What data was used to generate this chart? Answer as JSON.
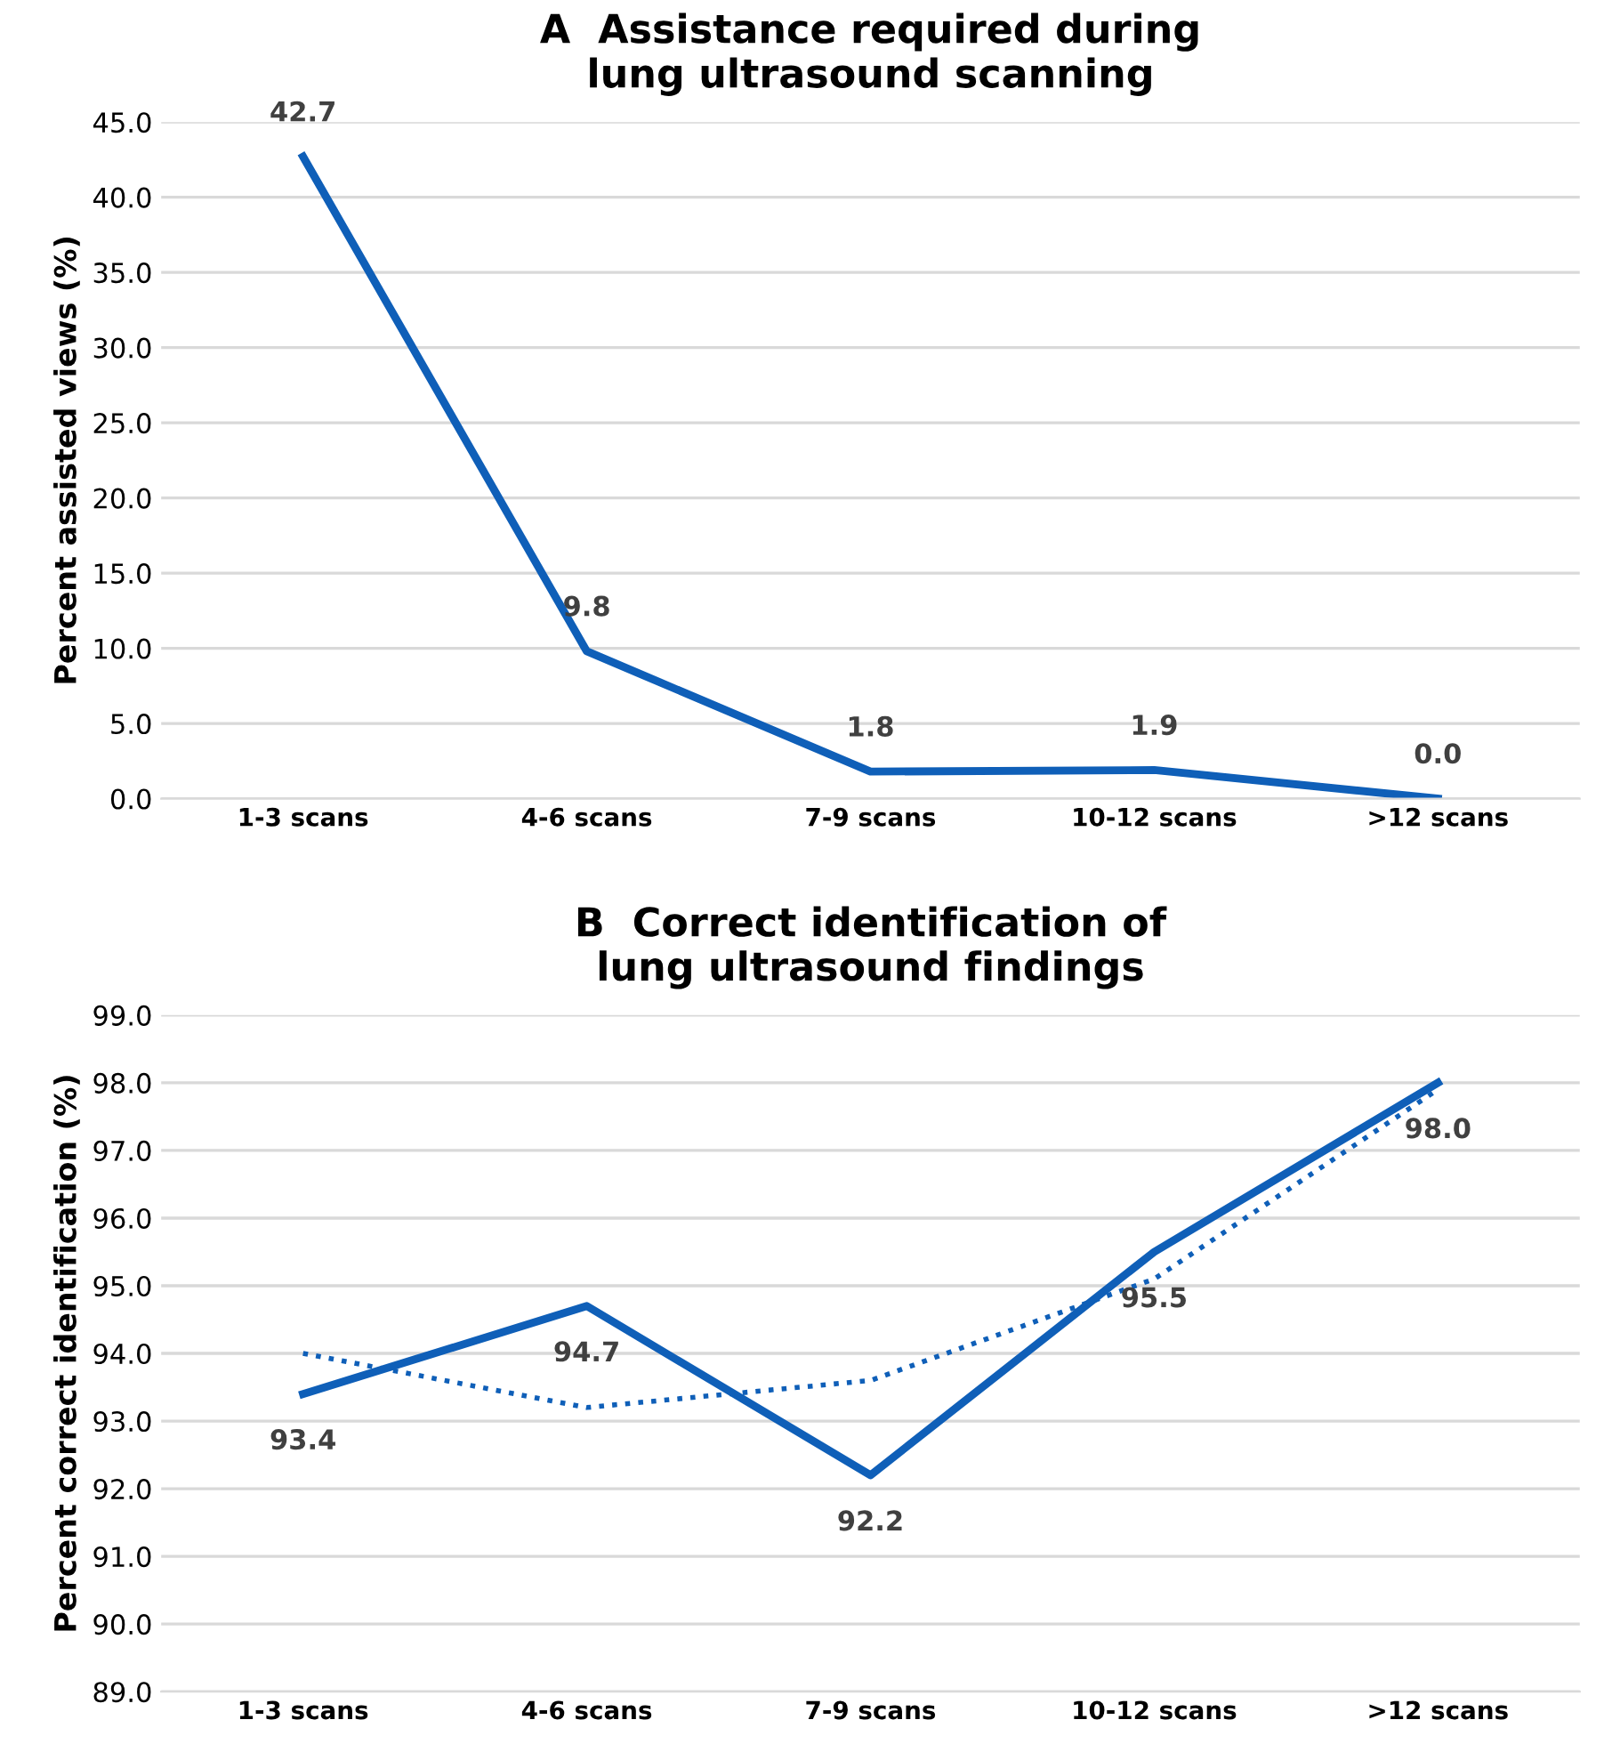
{
  "chart_data": [
    {
      "type": "line",
      "title": "A  Assistance required during\nlung ultrasound scanning",
      "ylabel": "Percent assisted views (%)",
      "categories": [
        "1-3 scans",
        "4-6 scans",
        "7-9 scans",
        "10-12 scans",
        ">12 scans"
      ],
      "series": [
        {
          "color": "#0f5fb8",
          "values": [
            42.7,
            9.8,
            1.8,
            1.9,
            0.0
          ],
          "value_labels": [
            "42.7",
            "9.8",
            "1.8",
            "1.9",
            "0.0"
          ]
        }
      ],
      "ylim": [
        0,
        45
      ],
      "yticks": [
        {
          "value": 0,
          "label": "0.0"
        },
        {
          "value": 5,
          "label": "5.0"
        },
        {
          "value": 10,
          "label": "10.0"
        },
        {
          "value": 15,
          "label": "15.0"
        },
        {
          "value": 20,
          "label": "20.0"
        },
        {
          "value": 25,
          "label": "25.0"
        },
        {
          "value": 30,
          "label": "30.0"
        },
        {
          "value": 35,
          "label": "35.0"
        },
        {
          "value": 40,
          "label": "40.0"
        },
        {
          "value": 45,
          "label": "45.0"
        }
      ],
      "grid": "y",
      "marker": "none",
      "legend": false
    },
    {
      "type": "line",
      "title": "B  Correct identification of\nlung ultrasound findings",
      "ylabel": "Percent correct identification (%)",
      "categories": [
        "1-3 scans",
        "4-6 scans",
        "7-9 scans",
        "10-12 scans",
        ">12 scans"
      ],
      "series": [
        {
          "color": "#0f5fb8",
          "values": [
            93.4,
            94.7,
            92.2,
            95.5,
            98.0
          ],
          "value_labels": [
            "93.4",
            "94.7",
            "92.2",
            "95.5",
            "98.0"
          ]
        },
        {
          "color": "#0f5fb8",
          "values": [
            94.0,
            93.2,
            93.6,
            95.1,
            97.9
          ],
          "line_style": "dotted"
        }
      ],
      "ylim": [
        89,
        99
      ],
      "yticks": [
        {
          "value": 89,
          "label": "89.0"
        },
        {
          "value": 90,
          "label": "90.0"
        },
        {
          "value": 91,
          "label": "91.0"
        },
        {
          "value": 92,
          "label": "92.0"
        },
        {
          "value": 93,
          "label": "93.0"
        },
        {
          "value": 94,
          "label": "94.0"
        },
        {
          "value": 95,
          "label": "95.0"
        },
        {
          "value": 96,
          "label": "96.0"
        },
        {
          "value": 97,
          "label": "97.0"
        },
        {
          "value": 98,
          "label": "98.0"
        },
        {
          "value": 99,
          "label": "99.0"
        }
      ],
      "grid": "y",
      "marker": "none",
      "legend": false
    }
  ]
}
